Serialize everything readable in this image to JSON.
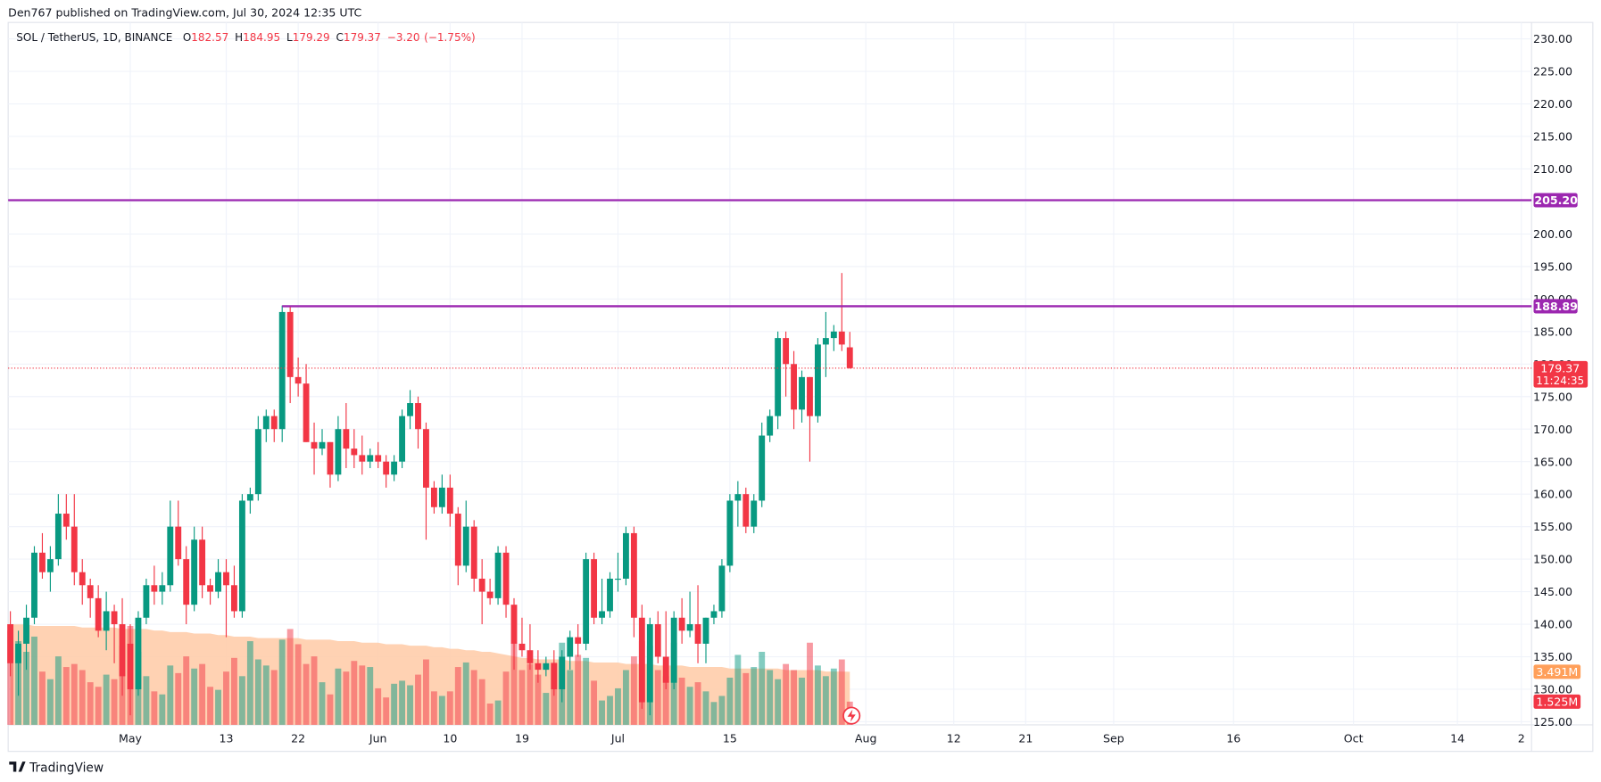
{
  "header": {
    "publisher": "Den767 published on TradingView.com, Jul 30, 2024 12:35 UTC",
    "footer": "TradingView"
  },
  "chart_data": {
    "type": "candlestick",
    "symbol": "SOL / TetherUS, 1D, BINANCE",
    "ohlc_labels": [
      "O",
      "H",
      "L",
      "C"
    ],
    "change": "−3.20",
    "change_pct": "(−1.75%)",
    "up_color": "#089981",
    "down_color": "#f23645",
    "volume_ma_color": "#ffcaa6",
    "x": [
      "Apr 16",
      "Apr 17",
      "Apr 18",
      "Apr 19",
      "Apr 20",
      "Apr 21",
      "Apr 22",
      "Apr 23",
      "Apr 24",
      "Apr 25",
      "Apr 26",
      "Apr 27",
      "Apr 28",
      "Apr 29",
      "Apr 30",
      "May 1",
      "May 2",
      "May 3",
      "May 4",
      "May 5",
      "May 6",
      "May 7",
      "May 8",
      "May 9",
      "May 10",
      "May 11",
      "May 12",
      "May 13",
      "May 14",
      "May 15",
      "May 16",
      "May 17",
      "May 18",
      "May 19",
      "May 20",
      "May 21",
      "May 22",
      "May 23",
      "May 24",
      "May 25",
      "May 26",
      "May 27",
      "May 28",
      "May 29",
      "May 30",
      "May 31",
      "Jun 1",
      "Jun 2",
      "Jun 3",
      "Jun 4",
      "Jun 5",
      "Jun 6",
      "Jun 7",
      "Jun 8",
      "Jun 9",
      "Jun 10",
      "Jun 11",
      "Jun 12",
      "Jun 13",
      "Jun 14",
      "Jun 15",
      "Jun 16",
      "Jun 17",
      "Jun 18",
      "Jun 19",
      "Jun 20",
      "Jun 21",
      "Jun 22",
      "Jun 23",
      "Jun 24",
      "Jun 25",
      "Jun 26",
      "Jun 27",
      "Jun 28",
      "Jun 29",
      "Jun 30",
      "Jul 1",
      "Jul 2",
      "Jul 3",
      "Jul 4",
      "Jul 5",
      "Jul 6",
      "Jul 7",
      "Jul 8",
      "Jul 9",
      "Jul 10",
      "Jul 11",
      "Jul 12",
      "Jul 13",
      "Jul 14",
      "Jul 15",
      "Jul 16",
      "Jul 17",
      "Jul 18",
      "Jul 19",
      "Jul 20",
      "Jul 21",
      "Jul 22",
      "Jul 23",
      "Jul 24",
      "Jul 25",
      "Jul 26",
      "Jul 27",
      "Jul 28",
      "Jul 29",
      "Jul 30"
    ],
    "open": [
      140,
      134,
      137,
      141,
      151,
      148,
      150,
      157,
      155,
      148,
      146,
      144,
      139,
      142,
      140,
      137,
      130,
      141,
      146,
      145,
      146,
      155,
      150,
      143,
      153,
      146,
      145,
      148,
      146,
      142,
      159,
      160,
      170,
      172,
      170,
      188,
      178,
      177,
      168,
      167,
      168,
      163,
      170,
      167,
      166,
      165,
      166,
      165,
      163,
      165,
      172,
      174,
      170,
      161,
      158,
      161,
      157,
      149,
      155,
      147,
      145,
      144,
      151,
      143,
      137,
      136,
      134,
      133,
      134,
      130,
      135,
      138,
      137,
      150,
      141,
      142,
      147,
      147,
      154,
      141,
      128,
      140,
      135,
      131,
      141,
      139,
      140,
      137,
      141,
      142,
      149,
      159,
      160,
      155,
      159,
      169,
      172,
      184,
      180,
      173,
      178,
      172,
      183,
      184,
      185,
      182.57
    ],
    "high": [
      142,
      139,
      143,
      152,
      154,
      152,
      160,
      160,
      160,
      150,
      147,
      146,
      145,
      143,
      144,
      140,
      142,
      147,
      149,
      148,
      159,
      159,
      152,
      155,
      155,
      147,
      150,
      150,
      149,
      160,
      161,
      172,
      173,
      173,
      189,
      189,
      181,
      180,
      171,
      170,
      168,
      172,
      174,
      170,
      169,
      167,
      168,
      166,
      166,
      173,
      176,
      175,
      171,
      162,
      163,
      163,
      158,
      159,
      156,
      150,
      147,
      152,
      152,
      144,
      141,
      140,
      136,
      135,
      136,
      136,
      139,
      140,
      151,
      151,
      147,
      148,
      151,
      155,
      155,
      143,
      141,
      142,
      142,
      142,
      144,
      145,
      146,
      141,
      143,
      150,
      160,
      162,
      161,
      160,
      171,
      173,
      185,
      185,
      182,
      179,
      178,
      184,
      188,
      186,
      194,
      184.95
    ],
    "low": [
      132,
      129,
      133,
      140,
      147,
      145,
      149,
      153,
      146,
      143,
      141,
      138,
      136,
      134,
      129,
      126,
      129,
      140,
      143,
      143,
      145,
      149,
      140,
      142,
      144,
      143,
      144,
      138,
      141,
      141,
      157,
      159,
      168,
      168,
      168,
      174,
      175,
      168,
      163,
      166,
      161,
      162,
      164,
      164,
      163,
      164,
      164,
      161,
      162,
      164,
      170,
      167,
      153,
      157,
      157,
      155,
      146,
      148,
      145,
      140,
      143,
      143,
      141,
      133,
      135,
      133,
      131,
      132,
      129,
      128,
      133,
      135,
      136,
      140,
      140,
      141,
      145,
      146,
      138,
      127,
      126,
      134,
      130,
      130,
      137,
      138,
      134,
      134,
      140,
      141,
      148,
      155,
      154,
      154,
      158,
      168,
      170,
      175,
      170,
      171,
      165,
      171,
      178,
      182,
      182,
      179.29
    ],
    "close": [
      134,
      137,
      141,
      151,
      148,
      150,
      157,
      155,
      148,
      146,
      144,
      139,
      142,
      140,
      132,
      130,
      141,
      146,
      145,
      146,
      155,
      150,
      143,
      153,
      146,
      145,
      148,
      146,
      142,
      159,
      160,
      170,
      172,
      170,
      188,
      178,
      177,
      168,
      167,
      168,
      163,
      170,
      167,
      166,
      165,
      166,
      165,
      163,
      165,
      172,
      174,
      170,
      161,
      158,
      161,
      157,
      149,
      155,
      147,
      145,
      144,
      151,
      143,
      137,
      136,
      134,
      133,
      134,
      130,
      135,
      138,
      137,
      150,
      141,
      142,
      147,
      147,
      154,
      141,
      128,
      140,
      135,
      131,
      141,
      139,
      140,
      137,
      141,
      142,
      149,
      159,
      160,
      155,
      159,
      169,
      172,
      184,
      180,
      173,
      178,
      172,
      183,
      184,
      185,
      183,
      179.37
    ],
    "volume": [
      6.2,
      5.5,
      4.8,
      5.8,
      3.5,
      3.0,
      4.5,
      3.8,
      4.0,
      3.6,
      2.8,
      2.5,
      3.3,
      3.0,
      5.2,
      6.5,
      4.8,
      3.2,
      2.2,
      2.0,
      3.9,
      3.4,
      4.5,
      3.7,
      4.0,
      2.5,
      2.3,
      3.5,
      4.4,
      3.2,
      5.5,
      4.3,
      3.9,
      3.6,
      5.6,
      6.3,
      5.3,
      4.0,
      4.5,
      2.8,
      2.0,
      3.7,
      3.5,
      4.2,
      3.9,
      3.8,
      2.4,
      1.8,
      2.7,
      2.9,
      2.6,
      3.3,
      4.3,
      2.2,
      1.9,
      2.2,
      3.8,
      4.1,
      3.6,
      3.0,
      1.4,
      1.6,
      3.5,
      5.4,
      3.6,
      4.0,
      3.3,
      2.1,
      4.1,
      5.4,
      3.6,
      4.6,
      4.4,
      2.9,
      1.6,
      1.9,
      2.4,
      3.6,
      4.5,
      5.5,
      5.2,
      3.6,
      3.2,
      5.4,
      3.1,
      2.5,
      2.8,
      2.2,
      1.5,
      1.9,
      3.1,
      4.6,
      3.4,
      3.8,
      4.8,
      3.6,
      3.0,
      4.0,
      3.6,
      3.1,
      5.4,
      3.9,
      3.2,
      3.7,
      4.3,
      1.525
    ],
    "volume_ma": [
      6.6,
      6.6,
      6.6,
      6.5,
      6.5,
      6.5,
      6.5,
      6.5,
      6.5,
      6.4,
      6.4,
      6.4,
      6.4,
      6.4,
      6.3,
      6.3,
      6.3,
      6.3,
      6.2,
      6.2,
      6.1,
      6.1,
      6.1,
      6.0,
      6.0,
      6.0,
      5.9,
      5.9,
      5.8,
      5.8,
      5.8,
      5.7,
      5.7,
      5.7,
      5.7,
      5.7,
      5.7,
      5.6,
      5.6,
      5.6,
      5.6,
      5.5,
      5.5,
      5.5,
      5.4,
      5.4,
      5.4,
      5.3,
      5.3,
      5.3,
      5.2,
      5.2,
      5.2,
      5.1,
      5.1,
      5.0,
      5.0,
      4.9,
      4.9,
      4.8,
      4.8,
      4.7,
      4.6,
      4.5,
      4.4,
      4.4,
      4.3,
      4.3,
      4.3,
      4.3,
      4.2,
      4.2,
      4.2,
      4.1,
      4.1,
      4.1,
      4.1,
      4.0,
      4.0,
      4.0,
      4.0,
      3.9,
      3.9,
      3.9,
      3.9,
      3.8,
      3.8,
      3.8,
      3.8,
      3.8,
      3.7,
      3.7,
      3.7,
      3.7,
      3.7,
      3.7,
      3.7,
      3.6,
      3.6,
      3.6,
      3.6,
      3.6,
      3.5,
      3.5,
      3.5,
      3.491
    ],
    "ylim": [
      124.53,
      232.52
    ],
    "yticks": [
      {
        "value": 125,
        "label": "125.00"
      },
      {
        "value": 130,
        "label": "130.00"
      },
      {
        "value": 135,
        "label": "135.00"
      },
      {
        "value": 140,
        "label": "140.00"
      },
      {
        "value": 145,
        "label": "145.00"
      },
      {
        "value": 150,
        "label": "150.00"
      },
      {
        "value": 155,
        "label": "155.00"
      },
      {
        "value": 160,
        "label": "160.00"
      },
      {
        "value": 165,
        "label": "165.00"
      },
      {
        "value": 170,
        "label": "170.00"
      },
      {
        "value": 175,
        "label": "175.00"
      },
      {
        "value": 180,
        "label": "180.00"
      },
      {
        "value": 185,
        "label": "185.00"
      },
      {
        "value": 190,
        "label": "190.00"
      },
      {
        "value": 195,
        "label": "195.00"
      },
      {
        "value": 200,
        "label": "200.00"
      },
      {
        "value": 205,
        "label": "205.00"
      },
      {
        "value": 210,
        "label": "210.00"
      },
      {
        "value": 215,
        "label": "215.00"
      },
      {
        "value": 220,
        "label": "220.00"
      },
      {
        "value": 225,
        "label": "225.00"
      },
      {
        "value": 230,
        "label": "230.00"
      }
    ],
    "xticks": [
      {
        "value": "May 1",
        "label": "May"
      },
      {
        "value": "May 13",
        "label": "13"
      },
      {
        "value": "May 22",
        "label": "22"
      },
      {
        "value": "Jun 1",
        "label": "Jun"
      },
      {
        "value": "Jun 10",
        "label": "10"
      },
      {
        "value": "Jun 19",
        "label": "19"
      },
      {
        "value": "Jul 1",
        "label": "Jul"
      },
      {
        "value": "Jul 15",
        "label": "15"
      },
      {
        "value": "Aug 1",
        "label": "Aug"
      },
      {
        "value": "Aug 12",
        "label": "12"
      },
      {
        "value": "Aug 21",
        "label": "21"
      },
      {
        "value": "Sep 1",
        "label": "Sep"
      },
      {
        "value": "Sep 16",
        "label": "16"
      },
      {
        "value": "Oct 1",
        "label": "Oct"
      },
      {
        "value": "Oct 14",
        "label": "14"
      },
      {
        "value": "Oct 22",
        "label": "2"
      }
    ],
    "levels": [
      {
        "value": 205.2,
        "label": "205.20",
        "color": "#9c27b0"
      },
      {
        "value": 188.89,
        "from": "May 20",
        "color": "#9c27b0"
      }
    ],
    "countdown": "11:24:35",
    "volume_tags": [
      {
        "value": 3.491,
        "label": "3.491M",
        "color": "#ff9f5a"
      },
      {
        "value": 1.525,
        "label": "1.525M",
        "color": "#f23645"
      }
    ],
    "grid": true
  }
}
